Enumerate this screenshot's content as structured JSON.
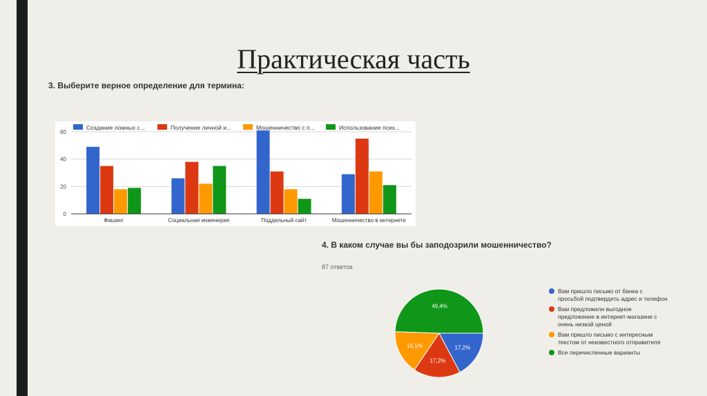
{
  "slide": {
    "title": "Практическая часть",
    "q3_title": "3. Выберите верное определение для термина:",
    "q4_title": "4. В каком случае вы бы заподозрили мошенничество?",
    "q4_answers": "87 ответов"
  },
  "colors": {
    "blue": "#3366cc",
    "red": "#dc3912",
    "orange": "#ff9900",
    "green": "#109618"
  },
  "chart_data": [
    {
      "type": "bar",
      "categories": [
        "Фишинг",
        "Социальная инженерия",
        "Поддельный сайт",
        "Мошенничество в интернете"
      ],
      "series": [
        {
          "name": "Создание ложных с...",
          "color": "#3366cc",
          "values": [
            49,
            26,
            61,
            29
          ]
        },
        {
          "name": "Получение личной и...",
          "color": "#dc3912",
          "values": [
            35,
            38,
            31,
            55
          ]
        },
        {
          "name": "Мошенничество с п...",
          "color": "#ff9900",
          "values": [
            18,
            22,
            18,
            31
          ]
        },
        {
          "name": "Использование псих...",
          "color": "#109618",
          "values": [
            19,
            35,
            11,
            21
          ]
        }
      ],
      "yticks": [
        0,
        20,
        40,
        60
      ],
      "ylim": [
        0,
        60
      ],
      "legend": "top",
      "grid": true
    },
    {
      "type": "pie",
      "slices": [
        {
          "label": "Вам пришло письмо от банка с просьбой подтвердить адрес и телефон",
          "value": 17.2,
          "display": "17,2%",
          "color": "#3366cc"
        },
        {
          "label": "Вам предложили выгодное предложение в интернет-магазине с очень низкой ценой",
          "value": 17.2,
          "display": "17,2%",
          "color": "#dc3912"
        },
        {
          "label": "Вам пришло письмо с интересным текстом от неизвестного отправителя",
          "value": 16.1,
          "display": "16,1%",
          "color": "#ff9900"
        },
        {
          "label": "Все перечисленные варианты",
          "value": 49.4,
          "display": "49,4%",
          "color": "#109618"
        }
      ],
      "legend": "right"
    }
  ]
}
